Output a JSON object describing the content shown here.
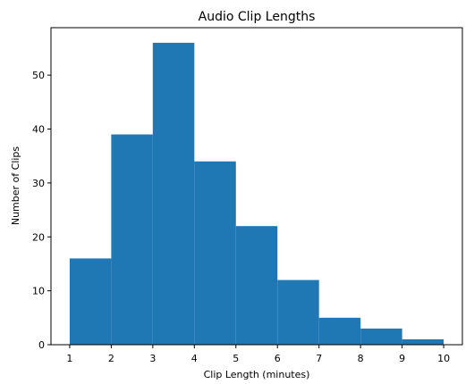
{
  "chart_data": {
    "type": "histogram",
    "title": "Audio Clip Lengths",
    "xlabel": "Clip Length (minutes)",
    "ylabel": "Number of Clips",
    "bin_edges": [
      1,
      2,
      3,
      4,
      5,
      6,
      7,
      8,
      9,
      10
    ],
    "values": [
      16,
      39,
      56,
      34,
      22,
      12,
      5,
      3,
      1
    ],
    "xlim": [
      0.55,
      10.45
    ],
    "ylim": [
      0,
      58.8
    ],
    "xticks": [
      1,
      2,
      3,
      4,
      5,
      6,
      7,
      8,
      9,
      10
    ],
    "yticks": [
      0,
      10,
      20,
      30,
      40,
      50
    ],
    "bar_color": "#1f77b4",
    "grid": false,
    "legend": "none"
  }
}
